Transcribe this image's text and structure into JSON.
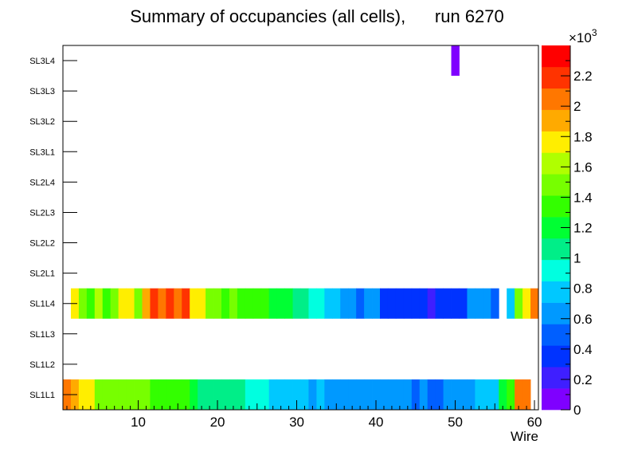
{
  "chart_data": {
    "type": "heatmap",
    "title": "Summary of occupancies (all cells),      run 6270",
    "xlabel": "Wire",
    "ylabel": "",
    "xlim": [
      0.5,
      60.5
    ],
    "x_ticks": [
      10,
      20,
      30,
      40,
      50,
      60
    ],
    "y_categories": [
      "SL1L1",
      "SL1L2",
      "SL1L3",
      "SL1L4",
      "SL2L1",
      "SL2L2",
      "SL2L3",
      "SL2L4",
      "SL3L1",
      "SL3L2",
      "SL3L3",
      "SL3L4"
    ],
    "colorbar": {
      "range": [
        0,
        2400
      ],
      "multiplier_label": "×10",
      "multiplier_exponent": "3",
      "tick_values": [
        0,
        200,
        400,
        600,
        800,
        1000,
        1200,
        1400,
        1600,
        1800,
        2000,
        2200
      ],
      "tick_labels": [
        "0",
        "0.2",
        "0.4",
        "0.6",
        "0.8",
        "1",
        "1.2",
        "1.4",
        "1.6",
        "1.8",
        "2",
        "2.2"
      ],
      "palette": [
        "#7f00ff",
        "#3f1fff",
        "#0033ff",
        "#005fff",
        "#0099ff",
        "#00c8ff",
        "#00ffe0",
        "#00ee88",
        "#00ff33",
        "#33ff00",
        "#77ff00",
        "#b0ff00",
        "#ffee00",
        "#ffaa00",
        "#ff7700",
        "#ff3300",
        "#ff0000"
      ]
    },
    "series": [
      {
        "name": "SL1L1",
        "values": [
          2100,
          1950,
          1800,
          1700,
          1450,
          1550,
          1450,
          1550,
          1550,
          1450,
          1450,
          1400,
          1350,
          1400,
          1300,
          1300,
          1250,
          1100,
          1100,
          1100,
          1100,
          1100,
          1100,
          900,
          900,
          900,
          800,
          800,
          800,
          800,
          800,
          700,
          800,
          650,
          650,
          650,
          650,
          650,
          650,
          650,
          650,
          650,
          580,
          580,
          500,
          580,
          450,
          550,
          650,
          580,
          650,
          700,
          800,
          800,
          800,
          1200,
          1400,
          2000,
          2100,
          0
        ]
      },
      {
        "name": "SL1L2",
        "values": []
      },
      {
        "name": "SL1L3",
        "values": []
      },
      {
        "name": "SL1L4",
        "values": [
          0,
          1800,
          1500,
          1400,
          1600,
          1400,
          1500,
          1700,
          1800,
          1550,
          1950,
          2250,
          2000,
          2250,
          2000,
          2200,
          1700,
          1700,
          1500,
          1500,
          1300,
          1500,
          1400,
          1300,
          1400,
          1350,
          1200,
          1200,
          1200,
          1100,
          1100,
          900,
          900,
          800,
          800,
          650,
          650,
          480,
          580,
          580,
          380,
          380,
          380,
          380,
          380,
          380,
          280,
          380,
          380,
          380,
          380,
          580,
          580,
          580,
          500,
          0,
          800,
          1500,
          1700,
          2000
        ]
      },
      {
        "name": "SL2L1",
        "values": []
      },
      {
        "name": "SL2L2",
        "values": []
      },
      {
        "name": "SL2L3",
        "values": []
      },
      {
        "name": "SL2L4",
        "values": []
      },
      {
        "name": "SL3L1",
        "values": []
      },
      {
        "name": "SL3L2",
        "values": []
      },
      {
        "name": "SL3L3",
        "values": []
      },
      {
        "name": "SL3L4",
        "values": [
          0,
          0,
          0,
          0,
          0,
          0,
          0,
          0,
          0,
          0,
          0,
          0,
          0,
          0,
          0,
          0,
          0,
          0,
          0,
          0,
          0,
          0,
          0,
          0,
          0,
          0,
          0,
          0,
          0,
          0,
          0,
          0,
          0,
          0,
          0,
          0,
          0,
          0,
          0,
          0,
          0,
          0,
          0,
          0,
          0,
          0,
          0,
          0,
          0,
          60,
          0,
          0,
          0,
          0,
          0,
          0,
          0,
          0,
          0,
          0
        ]
      }
    ]
  }
}
